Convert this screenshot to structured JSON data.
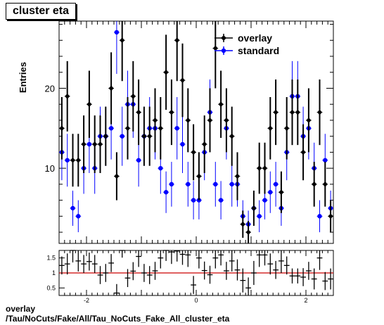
{
  "title": "cluster eta",
  "footer": {
    "line1": "overlay",
    "line2": "/Tau/NoCuts/Fake/All/Tau_NoCuts_Fake_All_cluster_eta"
  },
  "chart_data": [
    {
      "type": "scatter",
      "ylabel": "Entries",
      "xlim": [
        -2.5,
        2.5
      ],
      "ylim": [
        0.6,
        28.4
      ],
      "yticks": [
        10,
        20
      ],
      "legend_position": "top-right",
      "series": [
        {
          "name": "overlay",
          "color": "#000000",
          "marker": "diamond",
          "x": [
            -2.45,
            -2.35,
            -2.25,
            -2.15,
            -2.05,
            -1.95,
            -1.85,
            -1.75,
            -1.65,
            -1.55,
            -1.45,
            -1.35,
            -1.25,
            -1.15,
            -1.05,
            -0.95,
            -0.85,
            -0.75,
            -0.65,
            -0.55,
            -0.45,
            -0.35,
            -0.25,
            -0.15,
            -0.05,
            0.05,
            0.15,
            0.25,
            0.35,
            0.45,
            0.55,
            0.65,
            0.75,
            0.85,
            0.95,
            1.05,
            1.15,
            1.25,
            1.35,
            1.45,
            1.55,
            1.65,
            1.75,
            1.85,
            1.95,
            2.05,
            2.15,
            2.25,
            2.35,
            2.45
          ],
          "y": [
            15,
            19,
            11,
            11,
            13,
            18,
            13,
            13,
            14,
            20,
            9,
            26,
            15,
            19,
            17,
            14,
            14,
            16,
            15,
            22,
            17,
            26,
            21,
            16,
            12,
            9,
            13,
            16,
            25,
            18,
            16,
            14,
            9,
            3,
            2,
            5,
            10,
            10,
            15,
            17,
            7,
            15,
            17,
            17,
            12,
            16,
            8,
            17,
            8,
            4
          ],
          "yerr": [
            3.9,
            4.4,
            3.3,
            3.3,
            3.6,
            4.2,
            3.6,
            3.6,
            3.7,
            4.5,
            3.0,
            5.1,
            3.9,
            4.4,
            4.1,
            3.7,
            3.7,
            4.0,
            3.9,
            4.7,
            4.1,
            5.1,
            4.6,
            4.0,
            3.5,
            3.0,
            3.6,
            4.0,
            5.0,
            4.2,
            4.0,
            3.7,
            3.0,
            1.7,
            1.4,
            2.2,
            3.2,
            3.2,
            3.9,
            4.1,
            2.6,
            3.9,
            4.1,
            4.1,
            3.5,
            4.0,
            2.8,
            4.1,
            2.8,
            2.0
          ]
        },
        {
          "name": "standard",
          "color": "#0000ff",
          "marker": "circle",
          "x": [
            -2.45,
            -2.35,
            -2.25,
            -2.15,
            -2.05,
            -1.95,
            -1.85,
            -1.75,
            -1.65,
            -1.55,
            -1.45,
            -1.35,
            -1.25,
            -1.15,
            -1.05,
            -0.95,
            -0.85,
            -0.75,
            -0.65,
            -0.55,
            -0.45,
            -0.35,
            -0.25,
            -0.15,
            -0.05,
            0.05,
            0.15,
            0.25,
            0.35,
            0.45,
            0.55,
            0.65,
            0.75,
            0.85,
            0.95,
            1.05,
            1.15,
            1.25,
            1.35,
            1.45,
            1.55,
            1.65,
            1.75,
            1.85,
            1.95,
            2.05,
            2.15,
            2.25,
            2.35,
            2.45
          ],
          "y": [
            12,
            11,
            5,
            4,
            10,
            13,
            10,
            14,
            14,
            15,
            27,
            14,
            18,
            18,
            11,
            14,
            15,
            15,
            10,
            7,
            8,
            15,
            13,
            8,
            6,
            6,
            12,
            17,
            8,
            6,
            15,
            8,
            8,
            4,
            3,
            5,
            4,
            6,
            7,
            8,
            5,
            12,
            19,
            19,
            14,
            15,
            10,
            4,
            11,
            5
          ],
          "yerr": [
            3.5,
            3.3,
            2.2,
            2.0,
            3.2,
            3.6,
            3.2,
            3.7,
            3.7,
            3.9,
            5.2,
            3.7,
            4.2,
            4.2,
            3.3,
            3.7,
            3.9,
            3.9,
            3.2,
            2.6,
            2.8,
            3.9,
            3.6,
            2.8,
            2.4,
            2.4,
            3.5,
            4.1,
            2.8,
            2.4,
            3.9,
            2.8,
            2.8,
            2.0,
            1.7,
            2.2,
            2.0,
            2.4,
            2.6,
            2.8,
            2.2,
            3.5,
            4.4,
            4.4,
            3.7,
            3.9,
            3.2,
            2.0,
            3.3,
            2.2
          ]
        }
      ]
    },
    {
      "type": "scatter",
      "subtype": "ratio",
      "xlim": [
        -2.5,
        2.5
      ],
      "ylim": [
        0.25,
        1.75
      ],
      "xticks": [
        -2,
        0,
        2
      ],
      "yticks": [
        0.5,
        1,
        1.5
      ],
      "reference_line": {
        "y": 1,
        "color": "#cc0000"
      },
      "series": [
        {
          "name": "",
          "color": "#000000",
          "x": [
            -2.45,
            -2.35,
            -2.25,
            -2.15,
            -2.05,
            -1.95,
            -1.85,
            -1.75,
            -1.65,
            -1.55,
            -1.45,
            -1.35,
            -1.25,
            -1.15,
            -1.05,
            -0.95,
            -0.85,
            -0.75,
            -0.65,
            -0.55,
            -0.45,
            -0.35,
            -0.25,
            -0.15,
            -0.05,
            0.05,
            0.15,
            0.25,
            0.35,
            0.45,
            0.55,
            0.65,
            0.75,
            0.85,
            0.95,
            1.05,
            1.15,
            1.25,
            1.35,
            1.45,
            1.55,
            1.65,
            1.75,
            1.85,
            1.95,
            2.05,
            2.15,
            2.25,
            2.35,
            2.45
          ],
          "y": [
            1.25,
            1.3,
            1.75,
            1.4,
            1.3,
            1.38,
            1.3,
            0.93,
            1.0,
            1.33,
            0.33,
            1.86,
            0.83,
            1.06,
            1.55,
            1.0,
            0.93,
            1.07,
            1.5,
            1.8,
            1.7,
            1.73,
            1.62,
            1.6,
            0.6,
            1.5,
            1.08,
            0.94,
            1.5,
            1.6,
            1.07,
            1.4,
            1.1,
            0.75,
            0.5,
            1.0,
            1.6,
            1.6,
            1.3,
            1.1,
            1.4,
            1.25,
            0.9,
            0.9,
            0.86,
            1.07,
            0.8,
            1.5,
            0.73,
            0.8
          ],
          "yerr": [
            0.3,
            0.35,
            0.4,
            0.35,
            0.3,
            0.3,
            0.3,
            0.3,
            0.3,
            0.3,
            0.3,
            0.35,
            0.3,
            0.3,
            0.35,
            0.3,
            0.3,
            0.3,
            0.35,
            0.4,
            0.4,
            0.35,
            0.35,
            0.4,
            0.3,
            0.35,
            0.3,
            0.3,
            0.35,
            0.35,
            0.3,
            0.35,
            0.35,
            0.4,
            0.35,
            0.4,
            0.4,
            0.35,
            0.35,
            0.3,
            0.4,
            0.3,
            0.25,
            0.25,
            0.3,
            0.3,
            0.35,
            0.4,
            0.3,
            0.35
          ]
        }
      ]
    }
  ]
}
